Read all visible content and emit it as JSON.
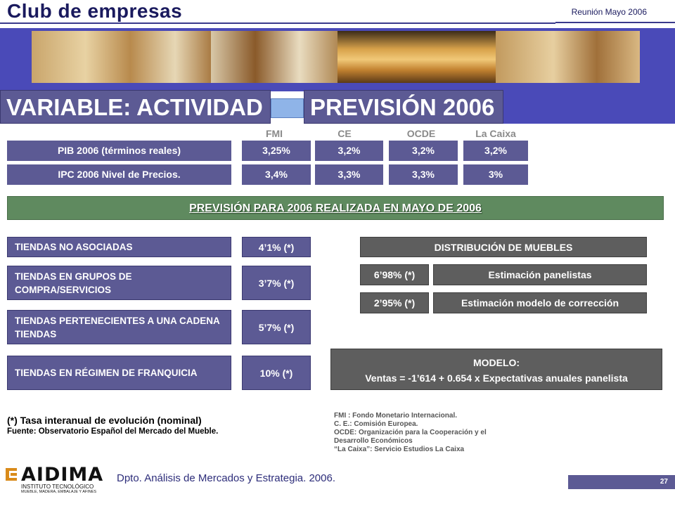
{
  "header": {
    "title": "Club de empresas",
    "meeting": "Reunión Mayo 2006"
  },
  "sections": {
    "left_title": "VARIABLE: ACTIVIDAD",
    "right_title": "PREVISIÓN 2006"
  },
  "forecast": {
    "columns": [
      "FMI",
      "CE",
      "OCDE",
      "La Caixa"
    ],
    "rows": [
      {
        "label": "PIB 2006  (términos reales)",
        "values": [
          "3,25%",
          "3,2%",
          "3,2%",
          "3,2%"
        ]
      },
      {
        "label": "IPC 2006 Nivel de Precios.",
        "values": [
          "3,4%",
          "3,3%",
          "3,3%",
          "3%"
        ]
      }
    ]
  },
  "may_forecast_title": "PREVISIÓN PARA 2006 REALIZADA EN MAYO DE 2006",
  "stores": [
    {
      "label": "TIENDAS NO ASOCIADAS",
      "value": "4’1% (*)"
    },
    {
      "label": "TIENDAS EN GRUPOS DE COMPRA/SERVICIOS",
      "value": "3’7% (*)"
    },
    {
      "label": "TIENDAS PERTENECIENTES A UNA CADENA TIENDAS",
      "value": "5’7% (*)"
    },
    {
      "label": "TIENDAS EN RÉGIMEN DE FRANQUICIA",
      "value": "10% (*)"
    }
  ],
  "distribution": {
    "title": "DISTRIBUCIÓN DE MUEBLES",
    "rows": [
      {
        "value": "6’98% (*)",
        "label": "Estimación panelistas"
      },
      {
        "value": "2’95% (*)",
        "label": "Estimación modelo de corrección"
      }
    ]
  },
  "model": {
    "title": "MODELO:",
    "formula": "Ventas = -1’614 + 0.654  x  Expectativas anuales panelista"
  },
  "notes": {
    "rate": "(*) Tasa interanual de evolución (nominal)",
    "source": "Fuente: Observatorio  Español del Mercado  del Mueble."
  },
  "legend": [
    "FMI : Fondo Monetario Internacional.",
    "C. E.:  Comisión Europea.",
    "OCDE: Organización para la Cooperación y el Desarrollo Económicos",
    "“La Caixa”: Servicio Estudios La Caixa"
  ],
  "footer": {
    "logo_name": "AIDIMA",
    "logo_sub": "INSTITUTO TECNOLÓGICO",
    "logo_sub2": "MUEBLE, MADERA, EMBALAJE Y AFINES",
    "department": "Dpto. Análisis de Mercados y Estrategia. 2006.",
    "page": "27"
  },
  "colors": {
    "navy": "#1a1a5e",
    "purple_box": "#5c5a94",
    "grey_box": "#5e5e5e",
    "green_box": "#5f8a5f",
    "banner_blue": "#4a4ab8"
  }
}
